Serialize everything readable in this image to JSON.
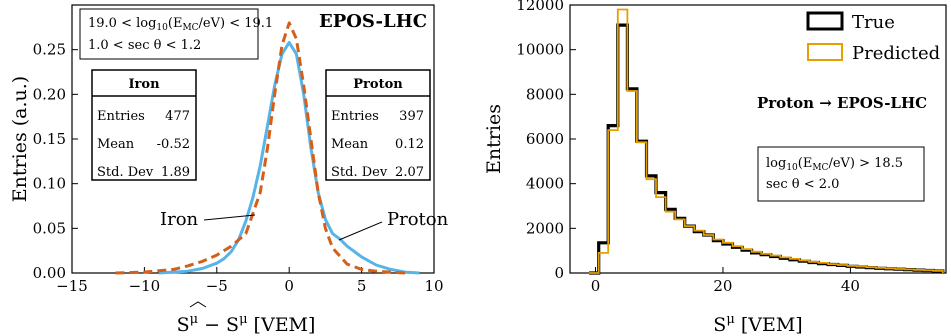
{
  "chart_data": [
    {
      "type": "line",
      "ylabel": "Entries (a.u.)",
      "xlabel": "Ŝ^μ − S^μ [VEM]",
      "xlim": [
        -15,
        10
      ],
      "ylim": [
        0,
        0.3
      ],
      "xticks": [
        -15,
        -10,
        -5,
        0,
        5,
        10
      ],
      "yticks": [
        0.0,
        0.05,
        0.1,
        0.15,
        0.2,
        0.25
      ],
      "ytick_labels": [
        "0.00",
        "0.05",
        "0.10",
        "0.15",
        "0.20",
        "0.25"
      ],
      "model_label": "EPOS-LHC",
      "cut_lines": [
        "19.0 < log10(E_MC/eV) < 19.1",
        "1.0 < sec θ < 1.2"
      ],
      "annotations": {
        "iron": "Iron",
        "proton": "Proton"
      },
      "stat_boxes": [
        {
          "title": "Iron",
          "rows": [
            [
              "Entries",
              "477"
            ],
            [
              "Mean",
              "-0.52"
            ],
            [
              "Std. Dev",
              "1.89"
            ]
          ]
        },
        {
          "title": "Proton",
          "rows": [
            [
              "Entries",
              "397"
            ],
            [
              "Mean",
              "0.12"
            ],
            [
              "Std. Dev",
              "2.07"
            ]
          ]
        }
      ],
      "series": [
        {
          "name": "Iron",
          "style": "dashed",
          "color": "#d35f1a",
          "x": [
            -12,
            -10,
            -8,
            -7,
            -6,
            -5,
            -4,
            -3,
            -2,
            -1.5,
            -1,
            -0.5,
            0,
            0.5,
            1,
            1.5,
            2,
            2.5,
            3,
            4,
            5,
            6,
            7,
            8
          ],
          "y": [
            0.0,
            0.001,
            0.004,
            0.008,
            0.013,
            0.02,
            0.03,
            0.044,
            0.09,
            0.14,
            0.2,
            0.255,
            0.28,
            0.262,
            0.21,
            0.15,
            0.09,
            0.05,
            0.028,
            0.01,
            0.004,
            0.002,
            0.001,
            0.0
          ]
        },
        {
          "name": "Proton",
          "style": "solid",
          "color": "#56b4e9",
          "x": [
            -9,
            -7,
            -6,
            -5,
            -4.5,
            -4,
            -3.5,
            -3,
            -2.5,
            -2,
            -1.5,
            -1,
            -0.5,
            0,
            0.5,
            1,
            1.5,
            2,
            2.5,
            3,
            3.5,
            4,
            5,
            6,
            7,
            8,
            9
          ],
          "y": [
            0.0,
            0.002,
            0.005,
            0.011,
            0.016,
            0.024,
            0.037,
            0.058,
            0.085,
            0.12,
            0.165,
            0.21,
            0.245,
            0.258,
            0.245,
            0.2,
            0.14,
            0.09,
            0.06,
            0.044,
            0.038,
            0.03,
            0.018,
            0.009,
            0.004,
            0.001,
            0.0
          ]
        }
      ]
    },
    {
      "type": "histogram",
      "ylabel": "Entries",
      "xlabel": "S^μ [VEM]",
      "xlim": [
        -4,
        55
      ],
      "ylim": [
        0,
        12000
      ],
      "xticks": [
        0,
        20,
        40
      ],
      "yticks": [
        0,
        2000,
        4000,
        6000,
        8000,
        10000,
        12000
      ],
      "legend_position": "top-right",
      "annotation": "Proton → EPOS-LHC",
      "cut_lines": [
        "log10(E_MC/eV) > 18.5",
        "sec θ < 2.0"
      ],
      "bin_edges": [
        -1,
        0,
        1,
        2,
        3,
        4,
        5,
        6,
        7,
        8,
        9,
        10,
        11,
        12,
        13,
        14,
        15,
        16,
        17,
        18,
        19,
        20,
        21,
        22,
        23,
        24,
        25,
        26,
        27,
        28,
        29,
        30,
        31,
        32,
        33,
        34,
        35,
        36,
        37,
        38,
        39,
        40,
        41,
        42,
        43,
        44,
        45,
        46,
        47,
        48,
        49,
        50,
        51,
        52,
        53,
        54
      ],
      "series": [
        {
          "name": "True",
          "color": "#000000",
          "values": [
            0,
            0,
            0,
            0,
            0,
            0,
            0,
            0,
            0,
            0,
            0,
            0,
            0,
            0,
            0,
            0,
            0,
            0,
            0,
            0,
            0,
            0,
            0,
            0,
            0,
            0,
            0,
            0,
            0,
            0,
            0,
            0,
            0,
            0,
            0,
            0,
            0,
            0,
            0,
            0,
            0,
            0,
            0,
            0,
            0,
            0,
            0,
            0,
            0,
            0,
            0,
            0,
            0,
            0,
            0
          ],
          "bin_width": 1.5,
          "bin_starts": [
            -1,
            0.5,
            2,
            3.5,
            5,
            6.5,
            8,
            9.5,
            11,
            12.5,
            14,
            15.5,
            17,
            18.5,
            20,
            21.5,
            23,
            24.5,
            26,
            27.5,
            29,
            30.5,
            32,
            33.5,
            35,
            36.5,
            38,
            39.5,
            41,
            42.5,
            44,
            45.5,
            47,
            48.5,
            50,
            51.5,
            53
          ],
          "bin_values": [
            0,
            1350,
            6600,
            11100,
            8250,
            5900,
            4350,
            3600,
            2850,
            2450,
            2100,
            1850,
            1700,
            1450,
            1300,
            1150,
            1020,
            900,
            820,
            740,
            660,
            590,
            530,
            470,
            420,
            380,
            340,
            300,
            270,
            240,
            210,
            190,
            170,
            150,
            130,
            110,
            90
          ]
        },
        {
          "name": "Predicted",
          "color": "#e69f00",
          "bin_width": 1.5,
          "bin_starts": [
            -1,
            0.5,
            2,
            3.5,
            5,
            6.5,
            8,
            9.5,
            11,
            12.5,
            14,
            15.5,
            17,
            18.5,
            20,
            21.5,
            23,
            24.5,
            26,
            27.5,
            29,
            30.5,
            32,
            33.5,
            35,
            36.5,
            38,
            39.5,
            41,
            42.5,
            44,
            45.5,
            47,
            48.5,
            50,
            51.5,
            53
          ],
          "bin_values": [
            0,
            900,
            6400,
            11800,
            8150,
            5850,
            4200,
            3400,
            2750,
            2400,
            2100,
            1900,
            1700,
            1500,
            1350,
            1200,
            1070,
            950,
            860,
            780,
            700,
            630,
            560,
            500,
            450,
            400,
            360,
            320,
            290,
            260,
            230,
            200,
            180,
            160,
            140,
            120,
            100
          ]
        }
      ]
    }
  ]
}
